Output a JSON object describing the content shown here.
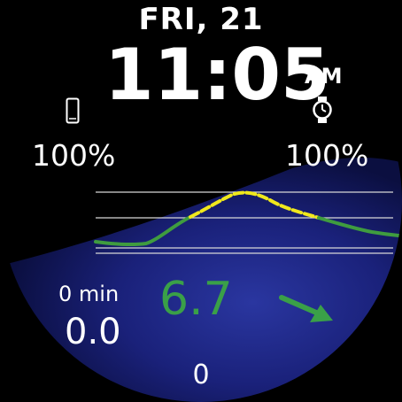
{
  "header": {
    "date": "FRI, 21",
    "time": "11:05",
    "ampm": "AM"
  },
  "battery": {
    "phone": "100%",
    "watch": "100%"
  },
  "glucose": {
    "value": "6.7",
    "trend": "arrow-right-down-icon",
    "color": "#3aa048"
  },
  "delta": {
    "minutes": "0 min",
    "value": "0.0"
  },
  "bottom": {
    "value": "0"
  },
  "icons": {
    "phone": "phone-icon",
    "watch": "watch-icon"
  },
  "colors": {
    "graph_line": "#3f9c3f",
    "graph_high": "#f0e81c",
    "background_glow": "#1d2a8a"
  }
}
